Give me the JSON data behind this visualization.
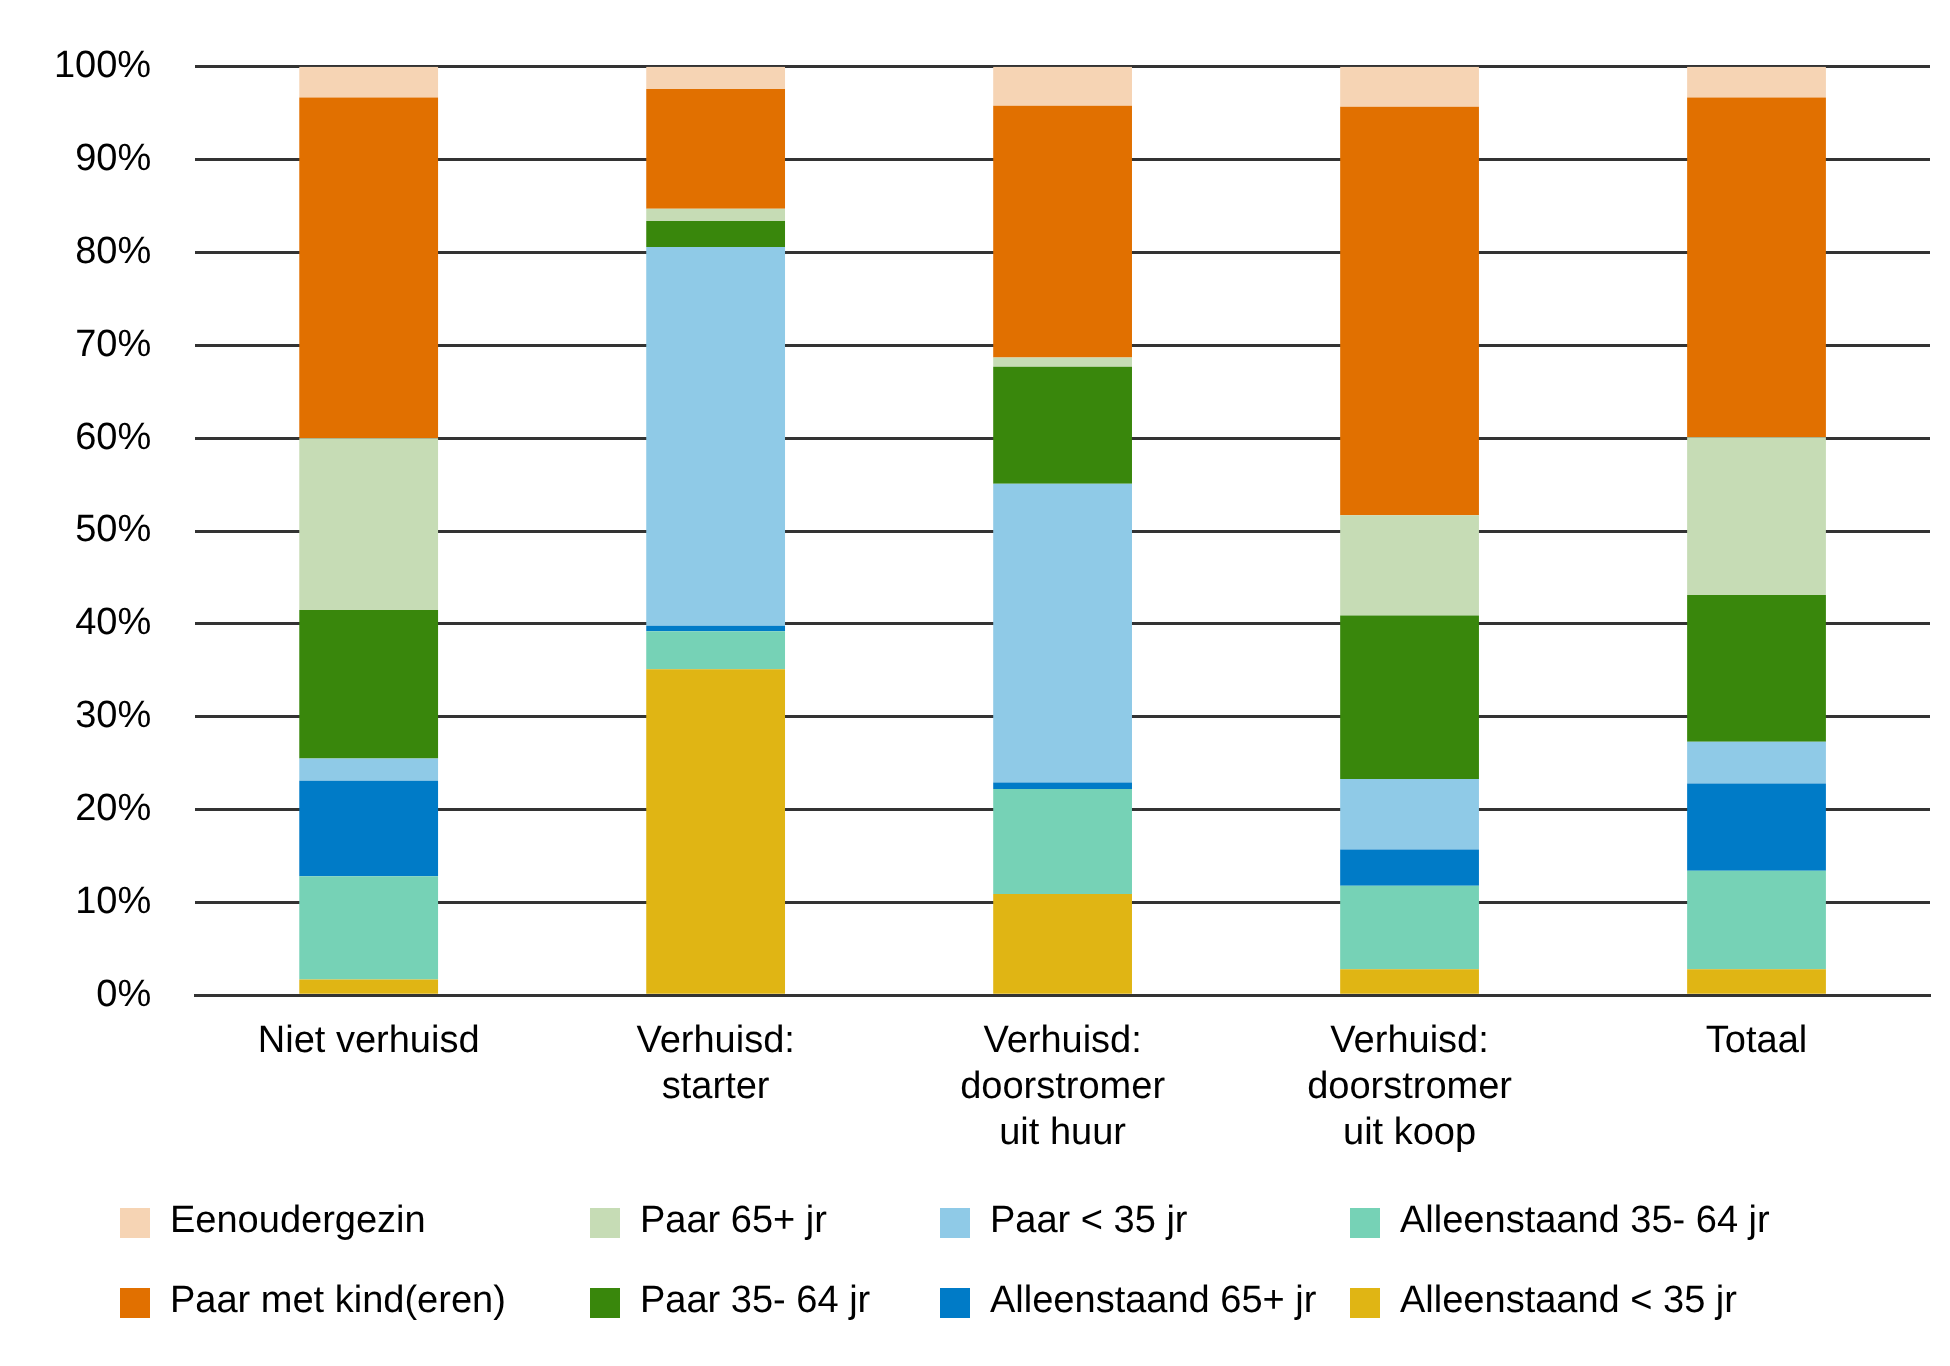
{
  "chart_data": {
    "type": "bar",
    "stacked": true,
    "categories": [
      "Niet verhuisd",
      "Verhuisd: starter",
      "Verhuisd: doorstromer uit huur",
      "Verhuisd: doorstromer uit koop",
      "Totaal"
    ],
    "series": [
      {
        "name": "Alleenstaand < 35 jr",
        "color": "#e0b514",
        "values": [
          1.7,
          35.1,
          10.9,
          2.8,
          2.8
        ]
      },
      {
        "name": "Alleenstaand 35- 64 jr",
        "color": "#76d2b6",
        "values": [
          11.1,
          4.1,
          11.3,
          9.0,
          10.6
        ]
      },
      {
        "name": "Alleenstaand 65+ jr",
        "color": "#007bc7",
        "values": [
          10.3,
          0.6,
          0.7,
          3.9,
          9.4
        ]
      },
      {
        "name": "Paar < 35 jr",
        "color": "#8fcae7",
        "values": [
          2.4,
          40.8,
          32.2,
          7.6,
          4.5
        ]
      },
      {
        "name": "Paar 35- 64 jr",
        "color": "#39870c",
        "values": [
          16.0,
          2.8,
          12.6,
          17.6,
          15.8
        ]
      },
      {
        "name": "Paar 65+ jr",
        "color": "#c6dcb5",
        "values": [
          18.5,
          1.3,
          1.0,
          10.8,
          17.0
        ]
      },
      {
        "name": "Paar met kind(eren)",
        "color": "#e17000",
        "values": [
          36.7,
          12.9,
          27.1,
          44.0,
          36.6
        ]
      },
      {
        "name": "Eenoudergezin",
        "color": "#f6d4b4",
        "values": [
          3.3,
          2.4,
          4.2,
          4.3,
          3.3
        ]
      }
    ],
    "ylim": [
      0,
      100
    ],
    "yticks": [
      {
        "value": 0,
        "label": "0%"
      },
      {
        "value": 10,
        "label": "10%"
      },
      {
        "value": 20,
        "label": "20%"
      },
      {
        "value": 30,
        "label": "30%"
      },
      {
        "value": 40,
        "label": "40%"
      },
      {
        "value": 50,
        "label": "50%"
      },
      {
        "value": 60,
        "label": "60%"
      },
      {
        "value": 70,
        "label": "70%"
      },
      {
        "value": 80,
        "label": "80%"
      },
      {
        "value": 90,
        "label": "90%"
      },
      {
        "value": 100,
        "label": "100%"
      }
    ],
    "grid": "y",
    "legend": "bottom"
  }
}
